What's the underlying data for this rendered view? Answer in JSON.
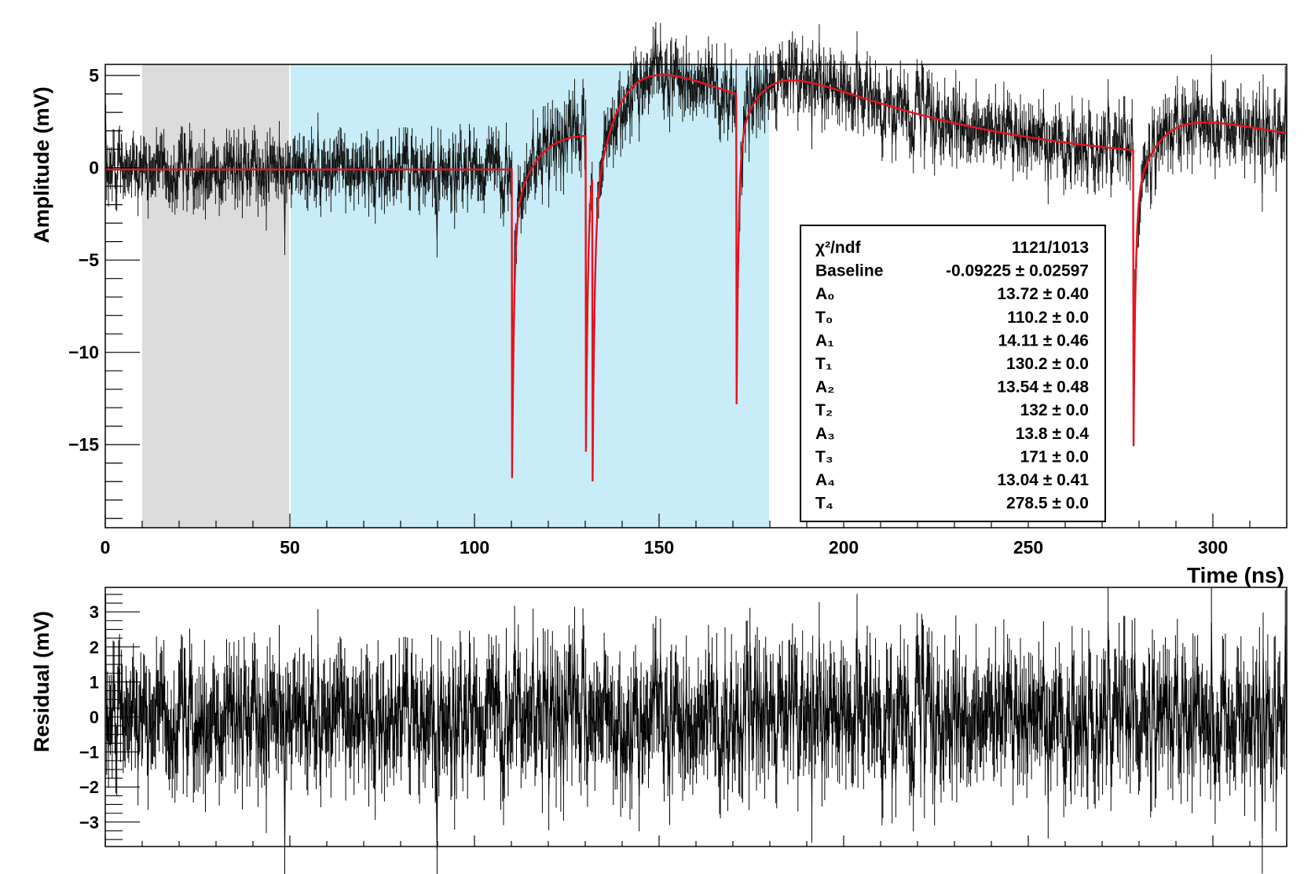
{
  "chart_data": [
    {
      "type": "line",
      "xlabel": "Time (ns)",
      "ylabel": "Amplitude (mV)",
      "xlim": [
        0,
        320
      ],
      "ylim": [
        -19.5,
        5.6
      ],
      "xticks": [
        0,
        50,
        100,
        150,
        200,
        250,
        300
      ],
      "xtick_labels": [
        "0",
        "50",
        "100",
        "150",
        "200",
        "250",
        "300"
      ],
      "yticks": [
        5,
        0,
        -5,
        -10,
        -15
      ],
      "ytick_labels": [
        "5",
        "0",
        "−5",
        "−10",
        "−15"
      ],
      "shaded_regions": [
        {
          "x": [
            10,
            50
          ],
          "color": "#dcdcdc"
        },
        {
          "x": [
            50,
            180
          ],
          "color": "#c8edf8"
        }
      ],
      "series": [
        {
          "role": "data",
          "color": "#111111",
          "noise_sigma": 0.9,
          "error_bar": 1.0
        },
        {
          "role": "fit",
          "color": "#e8121e"
        }
      ],
      "fit_model": {
        "baseline": -0.09225,
        "pulses": [
          {
            "A": 13.72,
            "T": 110.2
          },
          {
            "A": 14.11,
            "T": 130.2
          },
          {
            "A": 13.54,
            "T": 132.0
          },
          {
            "A": 13.8,
            "T": 171.0
          },
          {
            "A": 13.04,
            "T": 278.5
          }
        ]
      },
      "stats_box": {
        "rows": [
          {
            "label": "χ²/ndf",
            "value": "1121/1013",
            "error": ""
          },
          {
            "label": "Baseline",
            "value": "-0.09225",
            "error": "0.02597"
          },
          {
            "label": "A₀",
            "value": "13.72",
            "error": "0.40"
          },
          {
            "label": "T₀",
            "value": "110.2",
            "error": "0.0"
          },
          {
            "label": "A₁",
            "value": "14.11",
            "error": "0.46"
          },
          {
            "label": "T₁",
            "value": "130.2",
            "error": "0.0"
          },
          {
            "label": "A₂",
            "value": "13.54",
            "error": "0.48"
          },
          {
            "label": "T₂",
            "value": "132",
            "error": "0.0"
          },
          {
            "label": "A₃",
            "value": "13.8",
            "error": "0.4"
          },
          {
            "label": "T₃",
            "value": "171",
            "error": "0.0"
          },
          {
            "label": "A₄",
            "value": "13.04",
            "error": "0.41"
          },
          {
            "label": "T₄",
            "value": "278.5",
            "error": "0.0"
          }
        ]
      },
      "grid": false,
      "legend": "right, inside plot"
    },
    {
      "type": "line",
      "xlabel": "",
      "ylabel": "Residual (mV)",
      "xlim": [
        0,
        320
      ],
      "ylim": [
        -3.7,
        3.7
      ],
      "yticks": [
        3,
        2,
        1,
        0,
        -1,
        -2,
        -3
      ],
      "ytick_labels": [
        "3",
        "2",
        "1",
        "0",
        "−1",
        "−2",
        "−3"
      ],
      "series": [
        {
          "role": "residual",
          "color": "#000000",
          "noise_sigma": 0.9,
          "error_bar": 1.0
        }
      ],
      "grid": false
    }
  ]
}
